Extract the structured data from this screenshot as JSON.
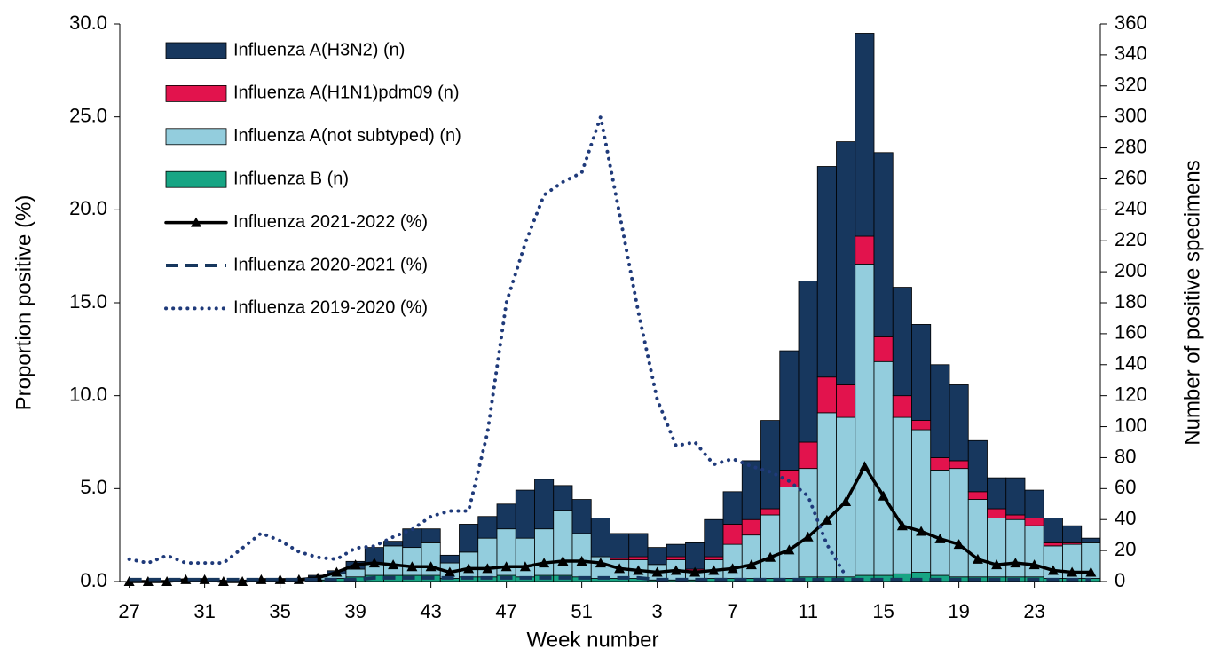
{
  "chart_data": {
    "type": "bar",
    "stacked": true,
    "x_label": "Week number",
    "y_label": "Proportion positive (%)",
    "y2_label": "Number of positive specimens",
    "legend": "upper left",
    "categories": [
      "27",
      null,
      null,
      null,
      "31",
      null,
      null,
      null,
      "35",
      null,
      null,
      null,
      "39",
      null,
      null,
      null,
      "43",
      null,
      null,
      null,
      "47",
      null,
      null,
      null,
      "51",
      null,
      null,
      null,
      "3",
      null,
      null,
      null,
      "7",
      null,
      null,
      null,
      "11",
      null,
      null,
      null,
      "15",
      null,
      null,
      null,
      "19",
      null,
      null,
      null,
      "23",
      null,
      null,
      null
    ],
    "ylim": [
      0,
      30
    ],
    "yticks": [
      {
        "value": 0,
        "label": "0.0"
      },
      {
        "value": 5,
        "label": "5.0"
      },
      {
        "value": 10,
        "label": "10.0"
      },
      {
        "value": 15,
        "label": "15.0"
      },
      {
        "value": 20,
        "label": "20.0"
      },
      {
        "value": 25,
        "label": "25.0"
      },
      {
        "value": 30,
        "label": "30.0"
      }
    ],
    "y2lim": [
      0,
      360
    ],
    "y2ticks": [
      0,
      20,
      40,
      60,
      80,
      100,
      120,
      140,
      160,
      180,
      200,
      220,
      240,
      260,
      280,
      300,
      320,
      340,
      360
    ],
    "series": [
      {
        "name": "Influenza A(H3N2) (n)",
        "type": "bar",
        "axis": "y2",
        "color": "#17375e",
        "values": [
          0,
          0,
          0,
          0,
          0,
          0,
          0,
          0,
          0,
          0,
          1,
          2,
          5,
          10,
          3,
          12,
          9,
          5,
          18,
          14,
          16,
          31,
          32,
          16,
          22,
          25,
          16,
          15,
          11,
          8,
          17,
          24,
          21,
          38,
          57,
          77,
          104,
          136,
          157,
          131,
          119,
          70,
          62,
          60,
          49,
          33,
          20,
          24,
          18,
          16,
          11,
          3
        ]
      },
      {
        "name": "Influenza A(H1N1)pdm09 (n)",
        "type": "bar",
        "axis": "y2",
        "color": "#e2134d",
        "values": [
          0,
          0,
          0,
          0,
          0,
          0,
          0,
          0,
          0,
          0,
          0,
          0,
          0,
          0,
          0,
          0,
          0,
          0,
          0,
          0,
          0,
          0,
          0,
          0,
          0,
          0,
          1,
          2,
          0,
          2,
          1,
          2,
          13,
          10,
          4,
          11,
          17,
          23,
          21,
          18,
          16,
          14,
          6,
          8,
          5,
          5,
          6,
          3,
          5,
          2,
          1,
          0
        ]
      },
      {
        "name": "Influenza A(not subtyped) (n)",
        "type": "bar",
        "axis": "y2",
        "color": "#93cddd",
        "values": [
          0,
          0,
          0,
          0,
          0,
          0,
          0,
          0,
          0,
          0,
          2,
          3,
          5,
          8,
          19,
          18,
          21,
          10,
          16,
          25,
          30,
          25,
          30,
          42,
          28,
          14,
          12,
          12,
          10,
          13,
          6,
          12,
          22,
          28,
          41,
          59,
          70,
          106,
          103,
          201,
          138,
          101,
          92,
          68,
          70,
          50,
          38,
          37,
          33,
          21,
          22,
          23
        ]
      },
      {
        "name": "Influenza B (n)",
        "type": "bar",
        "axis": "y2",
        "color": "#17a584",
        "values": [
          0,
          0,
          0,
          0,
          0,
          0,
          0,
          0,
          0,
          0,
          1,
          2,
          3,
          4,
          4,
          4,
          4,
          2,
          3,
          3,
          4,
          3,
          4,
          4,
          3,
          2,
          2,
          2,
          1,
          1,
          1,
          2,
          2,
          2,
          2,
          2,
          3,
          3,
          3,
          4,
          4,
          5,
          6,
          4,
          3,
          3,
          3,
          3,
          3,
          2,
          2,
          2
        ]
      },
      {
        "name": "Influenza 2021-2022 (%)",
        "type": "line",
        "style": "solid",
        "marker": "triangle",
        "color": "#000000",
        "values": [
          0,
          0,
          0,
          0.1,
          0.1,
          0,
          0,
          0.1,
          0.1,
          0.1,
          0.2,
          0.5,
          0.9,
          1.0,
          0.9,
          0.8,
          0.8,
          0.5,
          0.7,
          0.7,
          0.8,
          0.8,
          1.0,
          1.1,
          1.1,
          1.0,
          0.7,
          0.6,
          0.5,
          0.6,
          0.5,
          0.6,
          0.7,
          0.9,
          1.3,
          1.7,
          2.4,
          3.3,
          4.3,
          6.2,
          4.6,
          3.0,
          2.7,
          2.3,
          2.0,
          1.2,
          0.9,
          1.0,
          0.9,
          0.6,
          0.5,
          0.5
        ]
      },
      {
        "name": "Influenza 2020-2021 (%)",
        "type": "line",
        "style": "dashed",
        "color": "#17375e",
        "values": [
          0.1,
          0.1,
          0.1,
          0.1,
          0.1,
          0.1,
          0.1,
          0.1,
          0.1,
          0.1,
          0.1,
          0.1,
          0.1,
          0.2,
          0.2,
          0.2,
          0.2,
          0.2,
          0.2,
          0.2,
          0.2,
          0.2,
          0.2,
          0.2,
          0.2,
          0.2,
          0.2,
          0.2,
          0.1,
          0.1,
          0.1,
          0.1,
          0.1,
          0.1,
          0.1,
          0.1,
          0.1,
          0.1,
          0.1,
          0.1,
          0.1,
          0.1,
          0.1,
          0.1,
          0.1,
          0.1,
          0.1,
          0.1,
          0.1,
          0.1,
          0.1,
          0.1
        ]
      },
      {
        "name": "Influenza 2019-2020 (%)",
        "type": "line",
        "style": "dotted",
        "color": "#1f3a7a",
        "values": [
          1.2,
          1.0,
          1.4,
          1.0,
          1.0,
          1.0,
          1.8,
          2.6,
          2.2,
          1.6,
          1.3,
          1.2,
          1.8,
          1.9,
          2.4,
          2.8,
          3.5,
          3.8,
          3.8,
          8.0,
          15.0,
          18.2,
          20.8,
          21.5,
          22.0,
          25.0,
          19.8,
          14.5,
          9.8,
          7.3,
          7.5,
          6.3,
          6.6,
          6.2,
          5.9,
          5.4,
          4.6,
          2.0,
          0.3,
          null,
          null,
          null,
          null,
          null,
          null,
          null,
          null,
          null,
          null,
          null,
          null,
          null
        ]
      }
    ]
  }
}
